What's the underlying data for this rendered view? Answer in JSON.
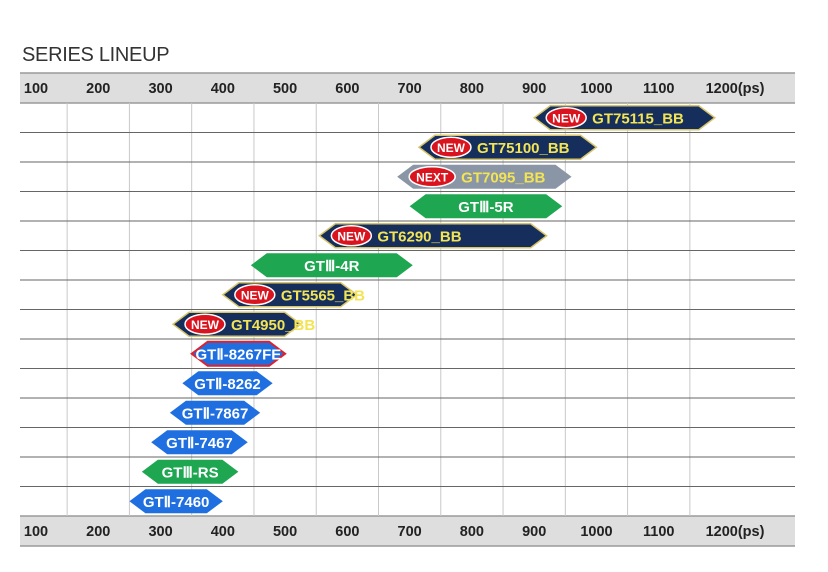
{
  "chart_data": {
    "type": "range-bar",
    "title": "SERIES LINEUP",
    "axis_ticks": [
      "100",
      "200",
      "300",
      "400",
      "500",
      "600",
      "700",
      "800",
      "900",
      "1000",
      "1100",
      "1200(ps)"
    ],
    "xlim": [
      100,
      1200
    ],
    "unit": "ps",
    "grid": true,
    "rows": [
      {
        "name": "GT75115_BB",
        "start": 900,
        "end": 1190,
        "badge": "NEW",
        "style": "navy"
      },
      {
        "name": "GT75100_BB",
        "start": 715,
        "end": 1000,
        "badge": "NEW",
        "style": "navy"
      },
      {
        "name": "GT7095_BB",
        "start": 680,
        "end": 960,
        "badge": "NEXT",
        "style": "gray"
      },
      {
        "name": "GTⅢ-5R",
        "start": 700,
        "end": 945,
        "badge": "",
        "style": "green"
      },
      {
        "name": "GT6290_BB",
        "start": 555,
        "end": 920,
        "badge": "NEW",
        "style": "navy"
      },
      {
        "name": "GTⅢ-4R",
        "start": 445,
        "end": 705,
        "badge": "",
        "style": "green"
      },
      {
        "name": "GT5565_BB",
        "start": 400,
        "end": 615,
        "badge": "NEW",
        "style": "navy"
      },
      {
        "name": "GT4950_BB",
        "start": 320,
        "end": 525,
        "badge": "NEW",
        "style": "navy"
      },
      {
        "name": "GTⅡ-8267FE",
        "start": 350,
        "end": 500,
        "badge": "",
        "style": "blue-outline"
      },
      {
        "name": "GTⅡ-8262",
        "start": 335,
        "end": 480,
        "badge": "",
        "style": "blue"
      },
      {
        "name": "GTⅡ-7867",
        "start": 315,
        "end": 460,
        "badge": "",
        "style": "blue"
      },
      {
        "name": "GTⅡ-7467",
        "start": 285,
        "end": 440,
        "badge": "",
        "style": "blue"
      },
      {
        "name": "GTⅢ-RS",
        "start": 270,
        "end": 425,
        "badge": "",
        "style": "green"
      },
      {
        "name": "GTⅡ-7460",
        "start": 250,
        "end": 400,
        "badge": "",
        "style": "blue"
      }
    ]
  },
  "colors": {
    "navy": "#152e5c",
    "navy_text": "#f2e455",
    "gray": "#8a95a5",
    "gray_text": "#f2e455",
    "green": "#1ea650",
    "blue": "#1f6fe0",
    "white_text": "#ffffff",
    "badge_red": "#d9141f",
    "badge_outline": "#ffffff",
    "outline_red": "#e2202a",
    "gold_outline": "#d7c46a",
    "header_bg": "#dedede",
    "grid_line": "#c8c8c8",
    "axis_text": "#222222"
  }
}
